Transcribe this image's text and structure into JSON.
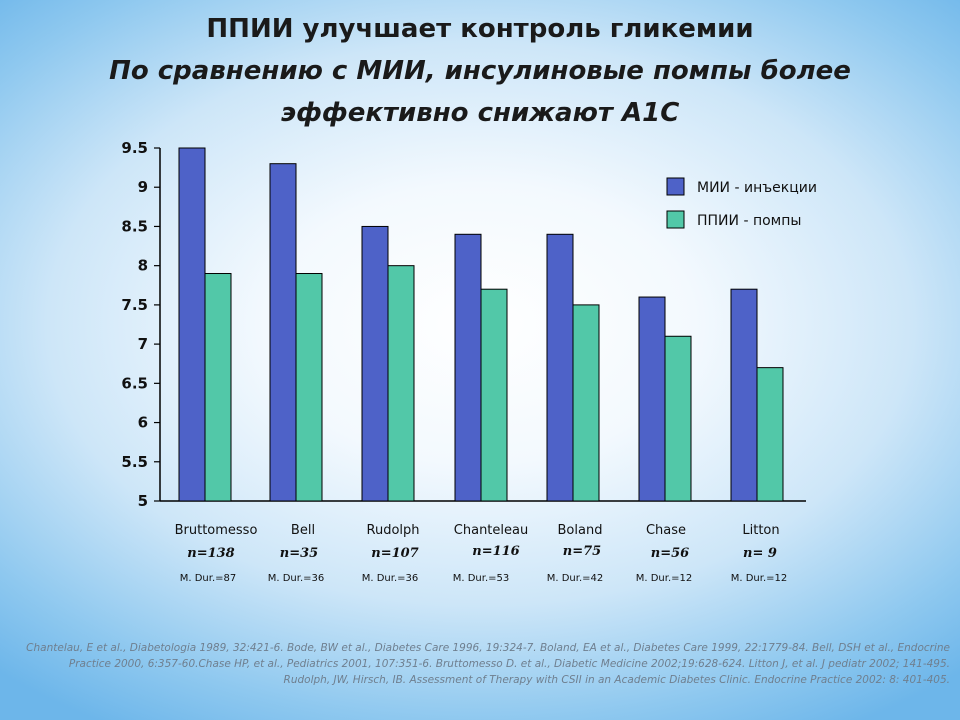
{
  "header": {
    "title": "ППИИ улучшает контроль гликемии",
    "subtitle_line1": "По сравнению с МИИ, инсулиновые помпы более",
    "subtitle_line2": "эффективно снижают А1С"
  },
  "colors": {
    "series1": "#4e62c8",
    "series2": "#52c8a8"
  },
  "chart_data": {
    "type": "bar",
    "categories": [
      "Bruttomesso",
      "Bell",
      "Rudolph",
      "Chanteleau",
      "Boland",
      "Chase",
      "Litton"
    ],
    "series": [
      {
        "name": "МИИ - инъекции",
        "values": [
          9.5,
          9.3,
          8.5,
          8.4,
          8.4,
          7.6,
          7.7
        ]
      },
      {
        "name": "ППИИ - помпы",
        "values": [
          7.9,
          7.9,
          8.0,
          7.7,
          7.5,
          7.1,
          6.7
        ]
      }
    ],
    "ylim": [
      5,
      9.5
    ],
    "yticks": [
      "5",
      "5.5",
      "6",
      "6.5",
      "7",
      "7.5",
      "8",
      "8.5",
      "9",
      "9.5"
    ],
    "n_labels": [
      "n=138",
      "n=35",
      "n=107",
      "n=116",
      "n=75",
      "n=56",
      "n= 9"
    ],
    "duration_labels": [
      "M. Dur.=87",
      "M. Dur.=36",
      "M. Dur.=36",
      "M. Dur.=53",
      "M. Dur.=42",
      "M. Dur.=12",
      "M. Dur.=12"
    ],
    "legend_position": "top-right",
    "grid": false
  },
  "references": "Chantelau, E et al., Diabetologia 1989, 32:421-6. Bode, BW et al., Diabetes Care 1996, 19:324-7. Boland, EA et al., Diabetes Care 1999, 22:1779-84. Bell, DSH et al., Endocrine Practice 2000, 6:357-60.Chase HP, et al., Pediatrics 2001, 107:351-6. Bruttomesso D. et al., Diabetic Medicine 2002;19:628-624. Litton J, et al. J pediatr 2002; 141-495. Rudolph, JW, Hirsch, IB. Assessment of Therapy with CSII in an Academic Diabetes Clinic. Endocrine Practice 2002: 8: 401-405."
}
